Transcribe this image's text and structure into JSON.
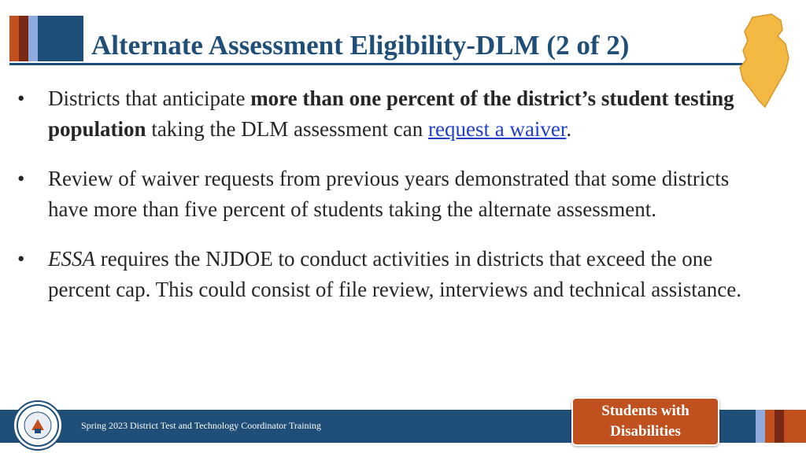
{
  "slide": {
    "title": "Alternate Assessment Eligibility-DLM (2 of 2)",
    "bullets": [
      {
        "marker": "•",
        "pre": "Districts that anticipate ",
        "bold": "more than one percent of the district’s student testing population",
        "mid": " taking the DLM assessment can ",
        "link": "request a waiver",
        "post": "."
      },
      {
        "marker": "•",
        "text": "Review of waiver requests from previous years demonstrated that some districts have more than five percent of students taking the alternate assessment."
      },
      {
        "marker": "•",
        "italic": "ESSA",
        "rest": " requires the NJDOE to conduct activities in districts that exceed the one percent cap. This could consist of file review, interviews and technical assistance."
      }
    ]
  },
  "footer": {
    "text": "Spring 2023 District Test and Technology Coordinator Training",
    "badge_line1": "Students with",
    "badge_line2": "Disabilities"
  },
  "colors": {
    "title": "#1f4e79",
    "accent_orange": "#c1501f",
    "map_fill": "#f4b942",
    "link": "#1f3fcc",
    "stripes": [
      "#c1501f",
      "#7a2a14",
      "#8faadc",
      "#1f4e79"
    ]
  },
  "icons": {
    "map": "new-jersey-map-icon",
    "seal": "department-seal-icon"
  }
}
